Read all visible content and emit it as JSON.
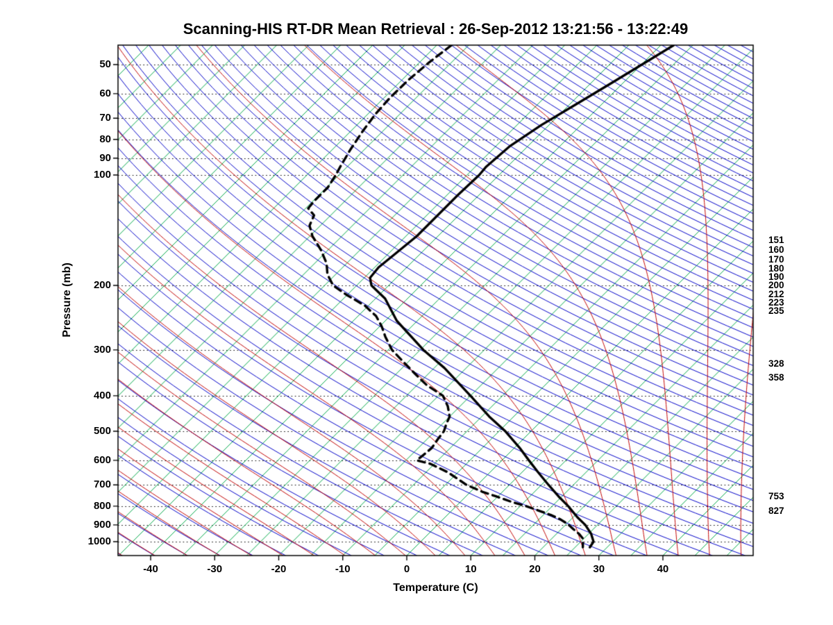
{
  "colors": {
    "isotherm": "#00a848",
    "dry_adiabat": "#0000c8",
    "moist_adiabat": "#c00000",
    "isobar": "#000000",
    "frame": "#000000",
    "profile": "#000000"
  },
  "chart_data": {
    "type": "line",
    "diagram": "skew-t log-p sounding",
    "title": "Scanning-HIS RT-DR Mean Retrieval : 26-Sep-2012 13:21:56 - 13:22:49",
    "xlabel": "Temperature (C)",
    "ylabel": "Pressure (mb)",
    "x_ticks_c": [
      -40,
      -30,
      -20,
      -10,
      0,
      10,
      20,
      30,
      40
    ],
    "x_range_c": [
      -45.1,
      54.1
    ],
    "pressure_ticks_mb": [
      50,
      60,
      70,
      80,
      90,
      100,
      200,
      300,
      400,
      500,
      600,
      700,
      800,
      900,
      1000
    ],
    "pressure_range_mb": [
      44.25,
      1091
    ],
    "skew_deg": 45,
    "grid": {
      "isobar_mb": [
        50,
        60,
        70,
        80,
        90,
        100,
        200,
        300,
        400,
        500,
        600,
        700,
        800,
        900,
        1000
      ],
      "isotherm_c": {
        "start": -125,
        "end": 50,
        "step": 5
      },
      "dry_adiabat_theta_k": {
        "start": 178,
        "end": 603,
        "step": 5
      },
      "moist_adiabat_t1000_c": {
        "start": -100,
        "end": 55,
        "step": 5
      }
    },
    "right_axis_levels_mb": [
      151,
      160,
      170,
      180,
      190,
      200,
      212,
      223,
      235,
      328,
      358,
      753,
      827
    ],
    "series": [
      {
        "name": "temperature",
        "style": "solid",
        "color": "#000000",
        "points": [
          [
            44.3,
            -38.0
          ],
          [
            49.3,
            -39.7
          ],
          [
            56.2,
            -41.8
          ],
          [
            64.1,
            -44.0
          ],
          [
            73.1,
            -46.2
          ],
          [
            83.3,
            -47.8
          ],
          [
            94.9,
            -48.3
          ],
          [
            100,
            -48.1
          ],
          [
            113,
            -48.3
          ],
          [
            128.8,
            -48.3
          ],
          [
            146.8,
            -48.3
          ],
          [
            163.7,
            -48.9
          ],
          [
            178.6,
            -49.4
          ],
          [
            190.7,
            -49.1
          ],
          [
            200,
            -47.7
          ],
          [
            217.3,
            -43.5
          ],
          [
            249.9,
            -38.2
          ],
          [
            300,
            -29.5
          ],
          [
            336,
            -23.4
          ],
          [
            400,
            -15.0
          ],
          [
            456,
            -8.8
          ],
          [
            500,
            -4.0
          ],
          [
            554.6,
            0.8
          ],
          [
            600,
            4.2
          ],
          [
            646.6,
            7.5
          ],
          [
            700,
            11.1
          ],
          [
            753,
            14.5
          ],
          [
            800,
            17.5
          ],
          [
            858.5,
            20.7
          ],
          [
            900,
            23.1
          ],
          [
            951.8,
            25.4
          ],
          [
            1000,
            27.0
          ],
          [
            1035.6,
            27.3
          ]
        ]
      },
      {
        "name": "dewpoint",
        "style": "dashed",
        "color": "#000000",
        "points": [
          [
            44.3,
            -72.7
          ],
          [
            49.3,
            -73.5
          ],
          [
            55.1,
            -74.0
          ],
          [
            61.4,
            -74.1
          ],
          [
            68.4,
            -73.8
          ],
          [
            76.3,
            -73.1
          ],
          [
            85.1,
            -72.2
          ],
          [
            94.9,
            -71.1
          ],
          [
            100,
            -70.5
          ],
          [
            108.2,
            -69.8
          ],
          [
            118,
            -69.8
          ],
          [
            123.3,
            -69.6
          ],
          [
            128.8,
            -67.6
          ],
          [
            137.4,
            -66.7
          ],
          [
            146.8,
            -64.6
          ],
          [
            160.2,
            -61.1
          ],
          [
            174.4,
            -58.1
          ],
          [
            186.6,
            -56.3
          ],
          [
            200,
            -53.7
          ],
          [
            212.6,
            -50.0
          ],
          [
            227,
            -45.6
          ],
          [
            242.4,
            -42.2
          ],
          [
            258.7,
            -39.7
          ],
          [
            276.2,
            -37.5
          ],
          [
            300,
            -34.4
          ],
          [
            321.8,
            -31.0
          ],
          [
            351.2,
            -26.7
          ],
          [
            374.8,
            -23.4
          ],
          [
            400,
            -19.3
          ],
          [
            427.3,
            -16.9
          ],
          [
            456,
            -15.0
          ],
          [
            476.4,
            -14.4
          ],
          [
            500,
            -13.6
          ],
          [
            526.8,
            -13.3
          ],
          [
            554.6,
            -12.9
          ],
          [
            579.9,
            -13.1
          ],
          [
            600,
            -13.3
          ],
          [
            613.5,
            -10.6
          ],
          [
            646.6,
            -6.6
          ],
          [
            675.4,
            -3.9
          ],
          [
            700,
            -1.7
          ],
          [
            730.6,
            1.8
          ],
          [
            753,
            4.8
          ],
          [
            776.4,
            7.7
          ],
          [
            800,
            10.9
          ],
          [
            825.4,
            13.9
          ],
          [
            848,
            16.4
          ],
          [
            869.9,
            18.4
          ],
          [
            896.5,
            20.3
          ],
          [
            924.5,
            21.9
          ],
          [
            951.8,
            23.5
          ],
          [
            981.6,
            24.9
          ],
          [
            1035.6,
            26.2
          ]
        ]
      }
    ]
  }
}
